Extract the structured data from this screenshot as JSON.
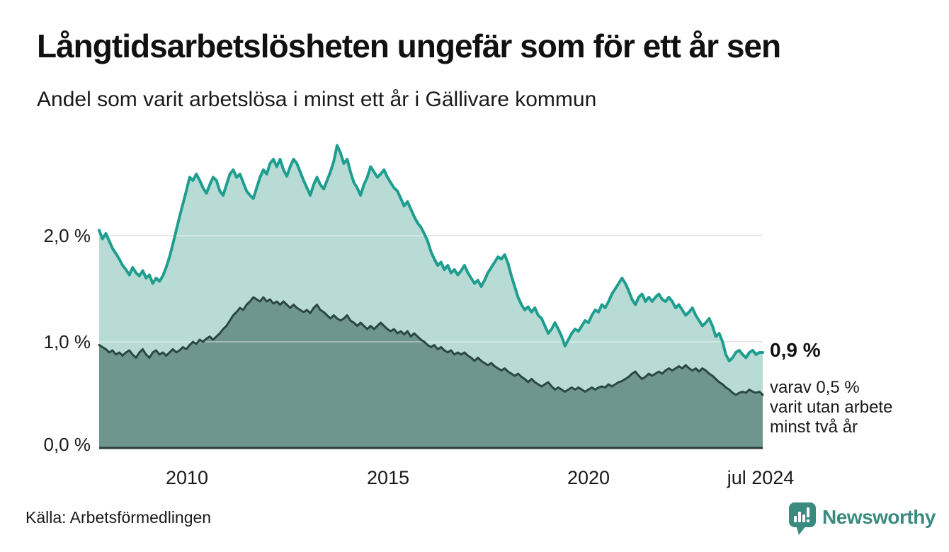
{
  "chart_data": {
    "type": "area",
    "title": "Långtidsarbetslösheten ungefär som för ett år sen",
    "subtitle": "Andel som varit arbetslösa i minst ett år i Gällivare kommun",
    "unit": "%",
    "x_start": 2008.0,
    "x_end": 2024.5,
    "points_per_year": 12,
    "ylim": [
      0,
      3
    ],
    "grid_values": [
      1,
      2
    ],
    "grid_color": "#dcdcdc",
    "baseline_color": "#2c3e3b",
    "y_axis": {
      "ticks": [
        {
          "value": 0,
          "label": "0,0 %"
        },
        {
          "value": 1,
          "label": "1,0 %"
        },
        {
          "value": 2,
          "label": "2,0 %"
        }
      ]
    },
    "x_axis": {
      "ticks": [
        {
          "year": 2010,
          "label": "2010"
        },
        {
          "year": 2015,
          "label": "2015"
        },
        {
          "year": 2020,
          "label": "2020"
        },
        {
          "year": 2024.5,
          "label": "jul 2024"
        }
      ]
    },
    "series": [
      {
        "name": "Andel arbetslösa minst ett år",
        "line_color": "#1f9e8f",
        "fill_color": "#b8dcd5",
        "line_width": 4,
        "last_value": 0.9,
        "values": [
          2.05,
          1.97,
          2.02,
          1.95,
          1.88,
          1.83,
          1.78,
          1.72,
          1.68,
          1.63,
          1.7,
          1.65,
          1.62,
          1.67,
          1.6,
          1.63,
          1.55,
          1.6,
          1.57,
          1.62,
          1.7,
          1.8,
          1.92,
          2.05,
          2.18,
          2.3,
          2.42,
          2.55,
          2.52,
          2.58,
          2.52,
          2.45,
          2.4,
          2.48,
          2.55,
          2.52,
          2.42,
          2.38,
          2.48,
          2.58,
          2.62,
          2.55,
          2.58,
          2.5,
          2.42,
          2.38,
          2.35,
          2.45,
          2.55,
          2.62,
          2.58,
          2.68,
          2.72,
          2.65,
          2.72,
          2.62,
          2.56,
          2.65,
          2.72,
          2.68,
          2.6,
          2.52,
          2.45,
          2.38,
          2.48,
          2.55,
          2.48,
          2.44,
          2.52,
          2.6,
          2.7,
          2.85,
          2.78,
          2.68,
          2.72,
          2.6,
          2.5,
          2.45,
          2.38,
          2.48,
          2.55,
          2.65,
          2.6,
          2.55,
          2.58,
          2.62,
          2.55,
          2.5,
          2.45,
          2.42,
          2.35,
          2.28,
          2.32,
          2.25,
          2.18,
          2.12,
          2.08,
          2.02,
          1.95,
          1.85,
          1.78,
          1.72,
          1.75,
          1.68,
          1.72,
          1.65,
          1.68,
          1.63,
          1.67,
          1.72,
          1.65,
          1.6,
          1.55,
          1.58,
          1.52,
          1.58,
          1.65,
          1.7,
          1.75,
          1.8,
          1.78,
          1.82,
          1.74,
          1.62,
          1.52,
          1.42,
          1.35,
          1.3,
          1.33,
          1.28,
          1.32,
          1.25,
          1.22,
          1.15,
          1.08,
          1.12,
          1.18,
          1.12,
          1.05,
          0.96,
          1.02,
          1.08,
          1.12,
          1.1,
          1.15,
          1.2,
          1.18,
          1.25,
          1.3,
          1.28,
          1.35,
          1.32,
          1.38,
          1.45,
          1.5,
          1.55,
          1.6,
          1.55,
          1.48,
          1.4,
          1.35,
          1.42,
          1.45,
          1.38,
          1.42,
          1.38,
          1.42,
          1.45,
          1.4,
          1.38,
          1.42,
          1.38,
          1.32,
          1.35,
          1.3,
          1.25,
          1.28,
          1.32,
          1.25,
          1.2,
          1.15,
          1.18,
          1.22,
          1.15,
          1.05,
          1.08,
          1.0,
          0.88,
          0.82,
          0.85,
          0.9,
          0.92,
          0.88,
          0.85,
          0.9,
          0.92,
          0.88,
          0.9,
          0.9
        ]
      },
      {
        "name": "Andel arbetslösa minst två år",
        "line_color": "#2b4743",
        "fill_color": "#6f958f",
        "line_width": 3,
        "last_value": 0.5,
        "values": [
          0.97,
          0.95,
          0.93,
          0.9,
          0.92,
          0.88,
          0.9,
          0.87,
          0.9,
          0.92,
          0.88,
          0.85,
          0.9,
          0.93,
          0.88,
          0.85,
          0.9,
          0.92,
          0.88,
          0.9,
          0.87,
          0.9,
          0.93,
          0.9,
          0.92,
          0.95,
          0.93,
          0.97,
          1.0,
          0.98,
          1.02,
          1.0,
          1.03,
          1.05,
          1.02,
          1.05,
          1.08,
          1.12,
          1.15,
          1.2,
          1.25,
          1.28,
          1.32,
          1.3,
          1.35,
          1.38,
          1.42,
          1.4,
          1.38,
          1.42,
          1.38,
          1.4,
          1.36,
          1.38,
          1.35,
          1.38,
          1.35,
          1.32,
          1.35,
          1.32,
          1.3,
          1.28,
          1.3,
          1.27,
          1.32,
          1.35,
          1.3,
          1.28,
          1.25,
          1.22,
          1.25,
          1.22,
          1.2,
          1.22,
          1.25,
          1.2,
          1.18,
          1.15,
          1.18,
          1.15,
          1.12,
          1.15,
          1.12,
          1.15,
          1.18,
          1.15,
          1.12,
          1.1,
          1.12,
          1.08,
          1.1,
          1.07,
          1.1,
          1.05,
          1.08,
          1.05,
          1.02,
          1.0,
          0.97,
          0.95,
          0.97,
          0.93,
          0.95,
          0.92,
          0.9,
          0.92,
          0.88,
          0.9,
          0.88,
          0.9,
          0.87,
          0.85,
          0.82,
          0.85,
          0.82,
          0.8,
          0.78,
          0.8,
          0.77,
          0.75,
          0.73,
          0.75,
          0.72,
          0.7,
          0.68,
          0.7,
          0.67,
          0.65,
          0.62,
          0.65,
          0.62,
          0.6,
          0.58,
          0.6,
          0.62,
          0.58,
          0.55,
          0.57,
          0.55,
          0.53,
          0.55,
          0.57,
          0.55,
          0.57,
          0.55,
          0.53,
          0.55,
          0.57,
          0.55,
          0.57,
          0.58,
          0.57,
          0.6,
          0.58,
          0.6,
          0.62,
          0.63,
          0.65,
          0.67,
          0.7,
          0.72,
          0.68,
          0.65,
          0.67,
          0.7,
          0.68,
          0.7,
          0.72,
          0.7,
          0.73,
          0.75,
          0.73,
          0.75,
          0.77,
          0.75,
          0.78,
          0.75,
          0.73,
          0.75,
          0.72,
          0.75,
          0.73,
          0.7,
          0.68,
          0.65,
          0.62,
          0.6,
          0.57,
          0.55,
          0.52,
          0.5,
          0.52,
          0.53,
          0.52,
          0.55,
          0.53,
          0.52,
          0.53,
          0.5
        ]
      }
    ],
    "annotation": {
      "headline": "0,9 %",
      "lines": [
        "varav 0,5 %",
        "varit utan arbete",
        "minst två år"
      ]
    },
    "legend_position": "none"
  },
  "footer": {
    "source": "Källa: Arbetsförmedlingen",
    "brand": "Newsworthy"
  },
  "colors": {
    "accent_teal": "#1f9e8f",
    "light_fill": "#b8dcd5",
    "dark_fill": "#6f958f",
    "dark_line": "#2b4743",
    "brand_teal": "#3a8a80",
    "grid": "#dcdcdc",
    "text": "#1a1a1a"
  }
}
